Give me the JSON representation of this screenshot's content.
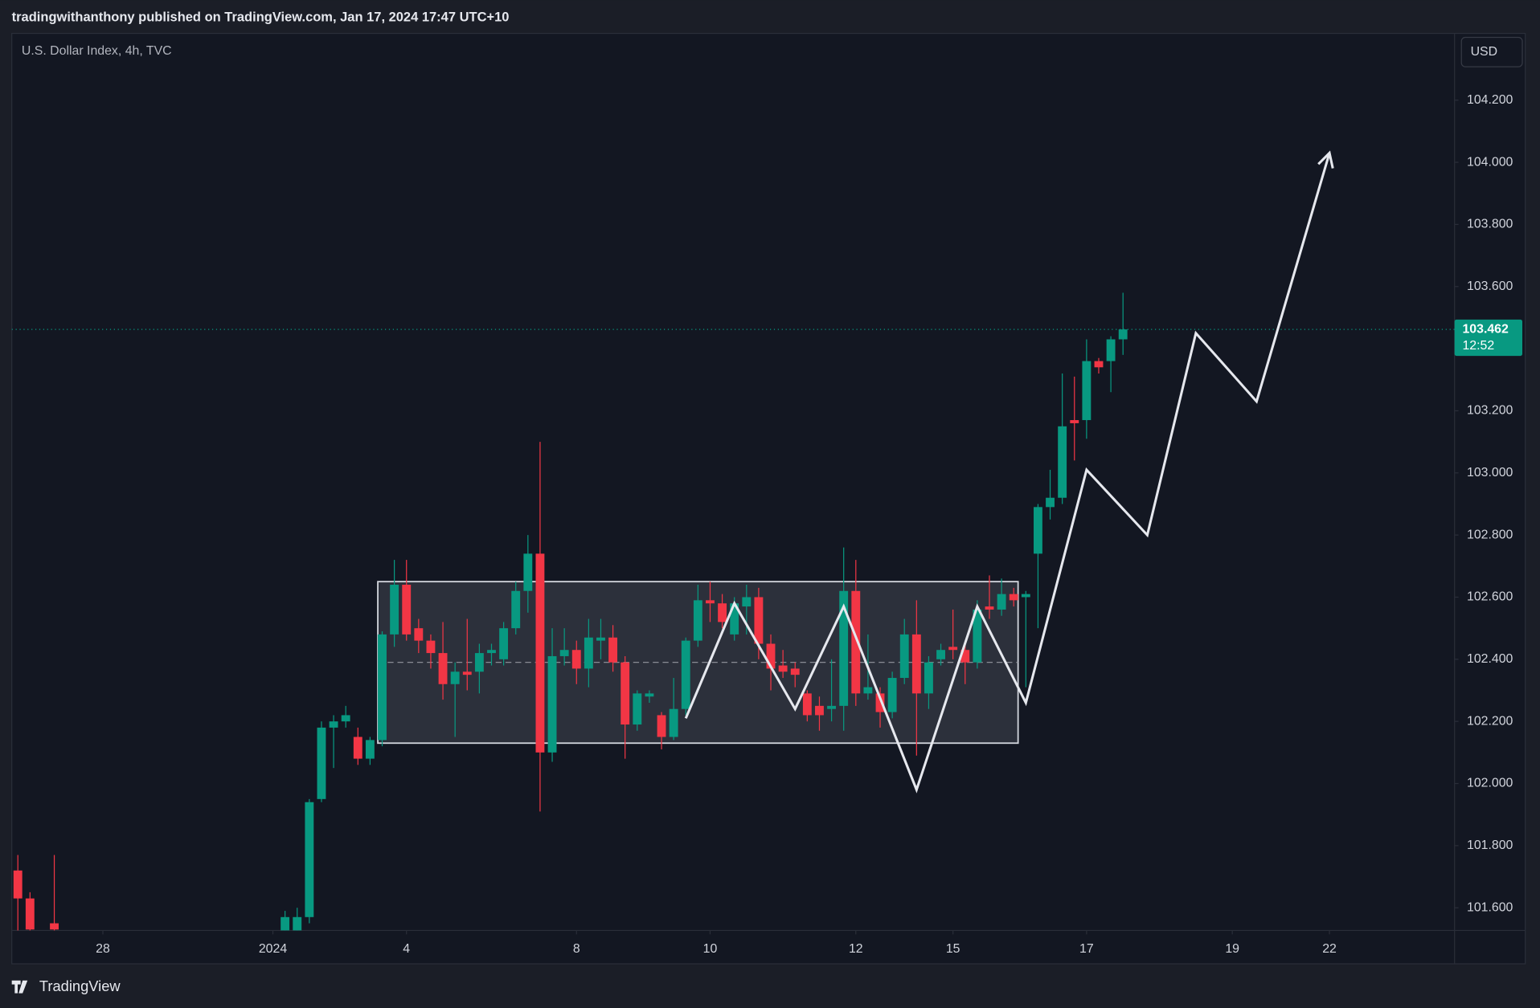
{
  "header": {
    "published": "tradingwithanthony published on TradingView.com, Jan 17, 2024 17:47 UTC+10"
  },
  "footer": {
    "brand": "TradingView"
  },
  "chart_data": {
    "type": "candlestick",
    "title": "U.S. Dollar Index, 4h, TVC",
    "currency": "USD",
    "up_color": "#089981",
    "down_color": "#f23645",
    "grid": false,
    "x": [
      0,
      1,
      3,
      22,
      23,
      24,
      25,
      26,
      27,
      28,
      29,
      30,
      31,
      32,
      33,
      34,
      35,
      36,
      37,
      38,
      39,
      40,
      41,
      42,
      43,
      44,
      45,
      46,
      47,
      48,
      49,
      50,
      51,
      52,
      53,
      54,
      55,
      56,
      57,
      58,
      59,
      60,
      61,
      62,
      63,
      64,
      65,
      66,
      67,
      68,
      69,
      70,
      71,
      72,
      73,
      74,
      75,
      76,
      77,
      78,
      79,
      80,
      81,
      82,
      83,
      84,
      85,
      86,
      87,
      88,
      89,
      90,
      91
    ],
    "open": [
      101.72,
      101.63,
      101.55,
      101.52,
      101.5,
      101.57,
      101.95,
      102.18,
      102.2,
      102.15,
      102.08,
      102.14,
      102.48,
      102.64,
      102.5,
      102.46,
      102.42,
      102.32,
      102.36,
      102.36,
      102.42,
      102.4,
      102.5,
      102.62,
      102.74,
      102.1,
      102.41,
      102.43,
      102.37,
      102.46,
      102.47,
      102.39,
      102.19,
      102.28,
      102.22,
      102.15,
      102.24,
      102.46,
      102.59,
      102.58,
      102.48,
      102.57,
      102.6,
      102.45,
      102.38,
      102.37,
      102.29,
      102.25,
      102.24,
      102.25,
      102.62,
      102.29,
      102.29,
      102.23,
      102.34,
      102.48,
      102.29,
      102.4,
      102.44,
      102.43,
      102.39,
      102.57,
      102.56,
      102.61,
      102.6,
      102.74,
      102.89,
      102.92,
      103.17,
      103.17,
      103.36,
      103.36,
      103.43
    ],
    "high": [
      101.77,
      101.65,
      101.77,
      101.59,
      101.6,
      101.95,
      102.2,
      102.22,
      102.25,
      102.18,
      102.15,
      102.49,
      102.72,
      102.72,
      102.53,
      102.48,
      102.52,
      102.39,
      102.53,
      102.45,
      102.45,
      102.52,
      102.65,
      102.8,
      103.1,
      102.5,
      102.5,
      102.46,
      102.53,
      102.53,
      102.51,
      102.41,
      102.3,
      102.3,
      102.23,
      102.34,
      102.47,
      102.64,
      102.65,
      102.61,
      102.6,
      102.64,
      102.63,
      102.48,
      102.43,
      102.39,
      102.3,
      102.28,
      102.4,
      102.76,
      102.72,
      102.48,
      102.31,
      102.36,
      102.53,
      102.59,
      102.41,
      102.45,
      102.56,
      102.45,
      102.59,
      102.67,
      102.66,
      102.63,
      102.62,
      102.9,
      103.01,
      103.32,
      103.31,
      103.43,
      103.37,
      103.44,
      103.58
    ],
    "low": [
      101.5,
      101.5,
      101.5,
      101.5,
      101.48,
      101.55,
      101.94,
      102.05,
      102.18,
      102.06,
      102.06,
      102.12,
      102.44,
      102.46,
      102.42,
      102.37,
      102.27,
      102.15,
      102.3,
      102.29,
      102.38,
      102.38,
      102.48,
      102.55,
      101.91,
      102.07,
      102.38,
      102.32,
      102.31,
      102.4,
      102.36,
      102.08,
      102.17,
      102.26,
      102.11,
      102.14,
      102.22,
      102.44,
      102.52,
      102.5,
      102.46,
      102.48,
      102.4,
      102.3,
      102.34,
      102.31,
      102.2,
      102.17,
      102.2,
      102.17,
      102.25,
      102.27,
      102.18,
      102.21,
      102.32,
      102.09,
      102.24,
      102.38,
      102.4,
      102.32,
      102.37,
      102.53,
      102.54,
      102.57,
      102.31,
      102.5,
      102.85,
      102.9,
      103.04,
      103.11,
      103.32,
      103.26,
      103.38
    ],
    "close": [
      101.63,
      101.53,
      101.53,
      101.57,
      101.57,
      101.94,
      102.18,
      102.2,
      102.22,
      102.08,
      102.14,
      102.48,
      102.64,
      102.48,
      102.46,
      102.42,
      102.32,
      102.36,
      102.35,
      102.42,
      102.43,
      102.5,
      102.62,
      102.74,
      102.1,
      102.41,
      102.43,
      102.37,
      102.47,
      102.47,
      102.39,
      102.19,
      102.29,
      102.29,
      102.15,
      102.24,
      102.46,
      102.59,
      102.58,
      102.52,
      102.58,
      102.6,
      102.45,
      102.37,
      102.36,
      102.35,
      102.22,
      102.22,
      102.25,
      102.62,
      102.29,
      102.31,
      102.23,
      102.34,
      102.48,
      102.29,
      102.39,
      102.43,
      102.43,
      102.39,
      102.56,
      102.56,
      102.61,
      102.59,
      102.61,
      102.89,
      102.92,
      103.15,
      103.16,
      103.36,
      103.34,
      103.43,
      103.462
    ],
    "last_price": 103.462,
    "countdown": "12:52",
    "xlim": [
      -0.5,
      118.3
    ],
    "ylim": [
      101.527,
      104.415
    ],
    "xticks": [
      {
        "value": 7,
        "label": "28"
      },
      {
        "value": 21,
        "label": "2024"
      },
      {
        "value": 32,
        "label": "4"
      },
      {
        "value": 46,
        "label": "8"
      },
      {
        "value": 57,
        "label": "10"
      },
      {
        "value": 69,
        "label": "12"
      },
      {
        "value": 77,
        "label": "15"
      },
      {
        "value": 88,
        "label": "17"
      },
      {
        "value": 100,
        "label": "19"
      },
      {
        "value": 108,
        "label": "22"
      }
    ],
    "yticks": [
      {
        "value": 101.6,
        "label": "101.600"
      },
      {
        "value": 101.8,
        "label": "101.800"
      },
      {
        "value": 102.0,
        "label": "102.000"
      },
      {
        "value": 102.2,
        "label": "102.200"
      },
      {
        "value": 102.4,
        "label": "102.400"
      },
      {
        "value": 102.6,
        "label": "102.600"
      },
      {
        "value": 102.8,
        "label": "102.800"
      },
      {
        "value": 103.0,
        "label": "103.000"
      },
      {
        "value": 103.2,
        "label": "103.200"
      },
      {
        "value": 103.4,
        "label": "103.400"
      },
      {
        "value": 103.6,
        "label": "103.600"
      },
      {
        "value": 103.8,
        "label": "103.800"
      },
      {
        "value": 104.0,
        "label": "104.000"
      },
      {
        "value": 104.2,
        "label": "104.200"
      }
    ],
    "drawings": {
      "box": {
        "x": [
          30,
          82
        ],
        "y": [
          102.65,
          102.13
        ],
        "mid": 102.39
      },
      "arrow": {
        "x": [
          55,
          59,
          64,
          68,
          74,
          79,
          83,
          88,
          93,
          97,
          102,
          108
        ],
        "y": [
          102.21,
          102.58,
          102.24,
          102.57,
          101.98,
          102.57,
          102.26,
          103.01,
          102.8,
          103.45,
          103.23,
          104.03
        ]
      }
    }
  }
}
